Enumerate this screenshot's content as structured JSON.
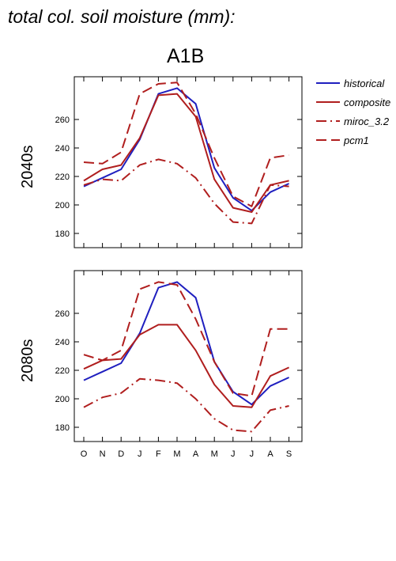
{
  "page_title": "total col. soil moisture (mm):",
  "scenario": "A1B",
  "colors": {
    "historical": "#1f1fbf",
    "model": "#b01e1e"
  },
  "chart_data": [
    {
      "type": "line",
      "panel_label": "2040s",
      "categories": [
        "O",
        "N",
        "D",
        "J",
        "F",
        "M",
        "A",
        "M",
        "J",
        "J",
        "A",
        "S"
      ],
      "ylim": [
        170,
        290
      ],
      "yticks": [
        180,
        200,
        220,
        240,
        260
      ],
      "series": [
        {
          "name": "historical",
          "style": "solid",
          "color": "#1f1fbf",
          "values": [
            213,
            219,
            225,
            246,
            278,
            282,
            271,
            226,
            205,
            196,
            209,
            215
          ]
        },
        {
          "name": "composite",
          "style": "solid",
          "color": "#b01e1e",
          "values": [
            217,
            225,
            228,
            247,
            277,
            278,
            262,
            218,
            198,
            195,
            214,
            217
          ]
        },
        {
          "name": "miroc_3.2",
          "style": "dashdot",
          "color": "#b01e1e",
          "values": [
            214,
            218,
            217,
            228,
            232,
            229,
            219,
            201,
            188,
            187,
            214,
            213
          ]
        },
        {
          "name": "pcm1",
          "style": "dash",
          "color": "#b01e1e",
          "values": [
            230,
            229,
            237,
            278,
            285,
            286,
            264,
            233,
            206,
            199,
            233,
            235
          ]
        }
      ]
    },
    {
      "type": "line",
      "panel_label": "2080s",
      "categories": [
        "O",
        "N",
        "D",
        "J",
        "F",
        "M",
        "A",
        "M",
        "J",
        "J",
        "A",
        "S"
      ],
      "ylim": [
        170,
        290
      ],
      "yticks": [
        180,
        200,
        220,
        240,
        260
      ],
      "series": [
        {
          "name": "historical",
          "style": "solid",
          "color": "#1f1fbf",
          "values": [
            213,
            219,
            225,
            246,
            278,
            282,
            271,
            226,
            205,
            196,
            209,
            215
          ]
        },
        {
          "name": "composite",
          "style": "solid",
          "color": "#b01e1e",
          "values": [
            221,
            227,
            228,
            245,
            252,
            252,
            234,
            210,
            195,
            194,
            216,
            222
          ]
        },
        {
          "name": "miroc_3.2",
          "style": "dashdot",
          "color": "#b01e1e",
          "values": [
            194,
            201,
            204,
            214,
            213,
            211,
            200,
            186,
            178,
            177,
            192,
            195
          ]
        },
        {
          "name": "pcm1",
          "style": "dash",
          "color": "#b01e1e",
          "values": [
            231,
            227,
            234,
            277,
            282,
            280,
            256,
            226,
            204,
            202,
            249,
            249
          ]
        }
      ]
    }
  ],
  "legend": {
    "position": "top-right",
    "items": [
      {
        "label": "historical",
        "style": "solid",
        "color": "#1f1fbf"
      },
      {
        "label": "composite",
        "style": "solid",
        "color": "#b01e1e"
      },
      {
        "label": "miroc_3.2",
        "style": "dashdot",
        "color": "#b01e1e"
      },
      {
        "label": "pcm1",
        "style": "dash",
        "color": "#b01e1e"
      }
    ]
  }
}
